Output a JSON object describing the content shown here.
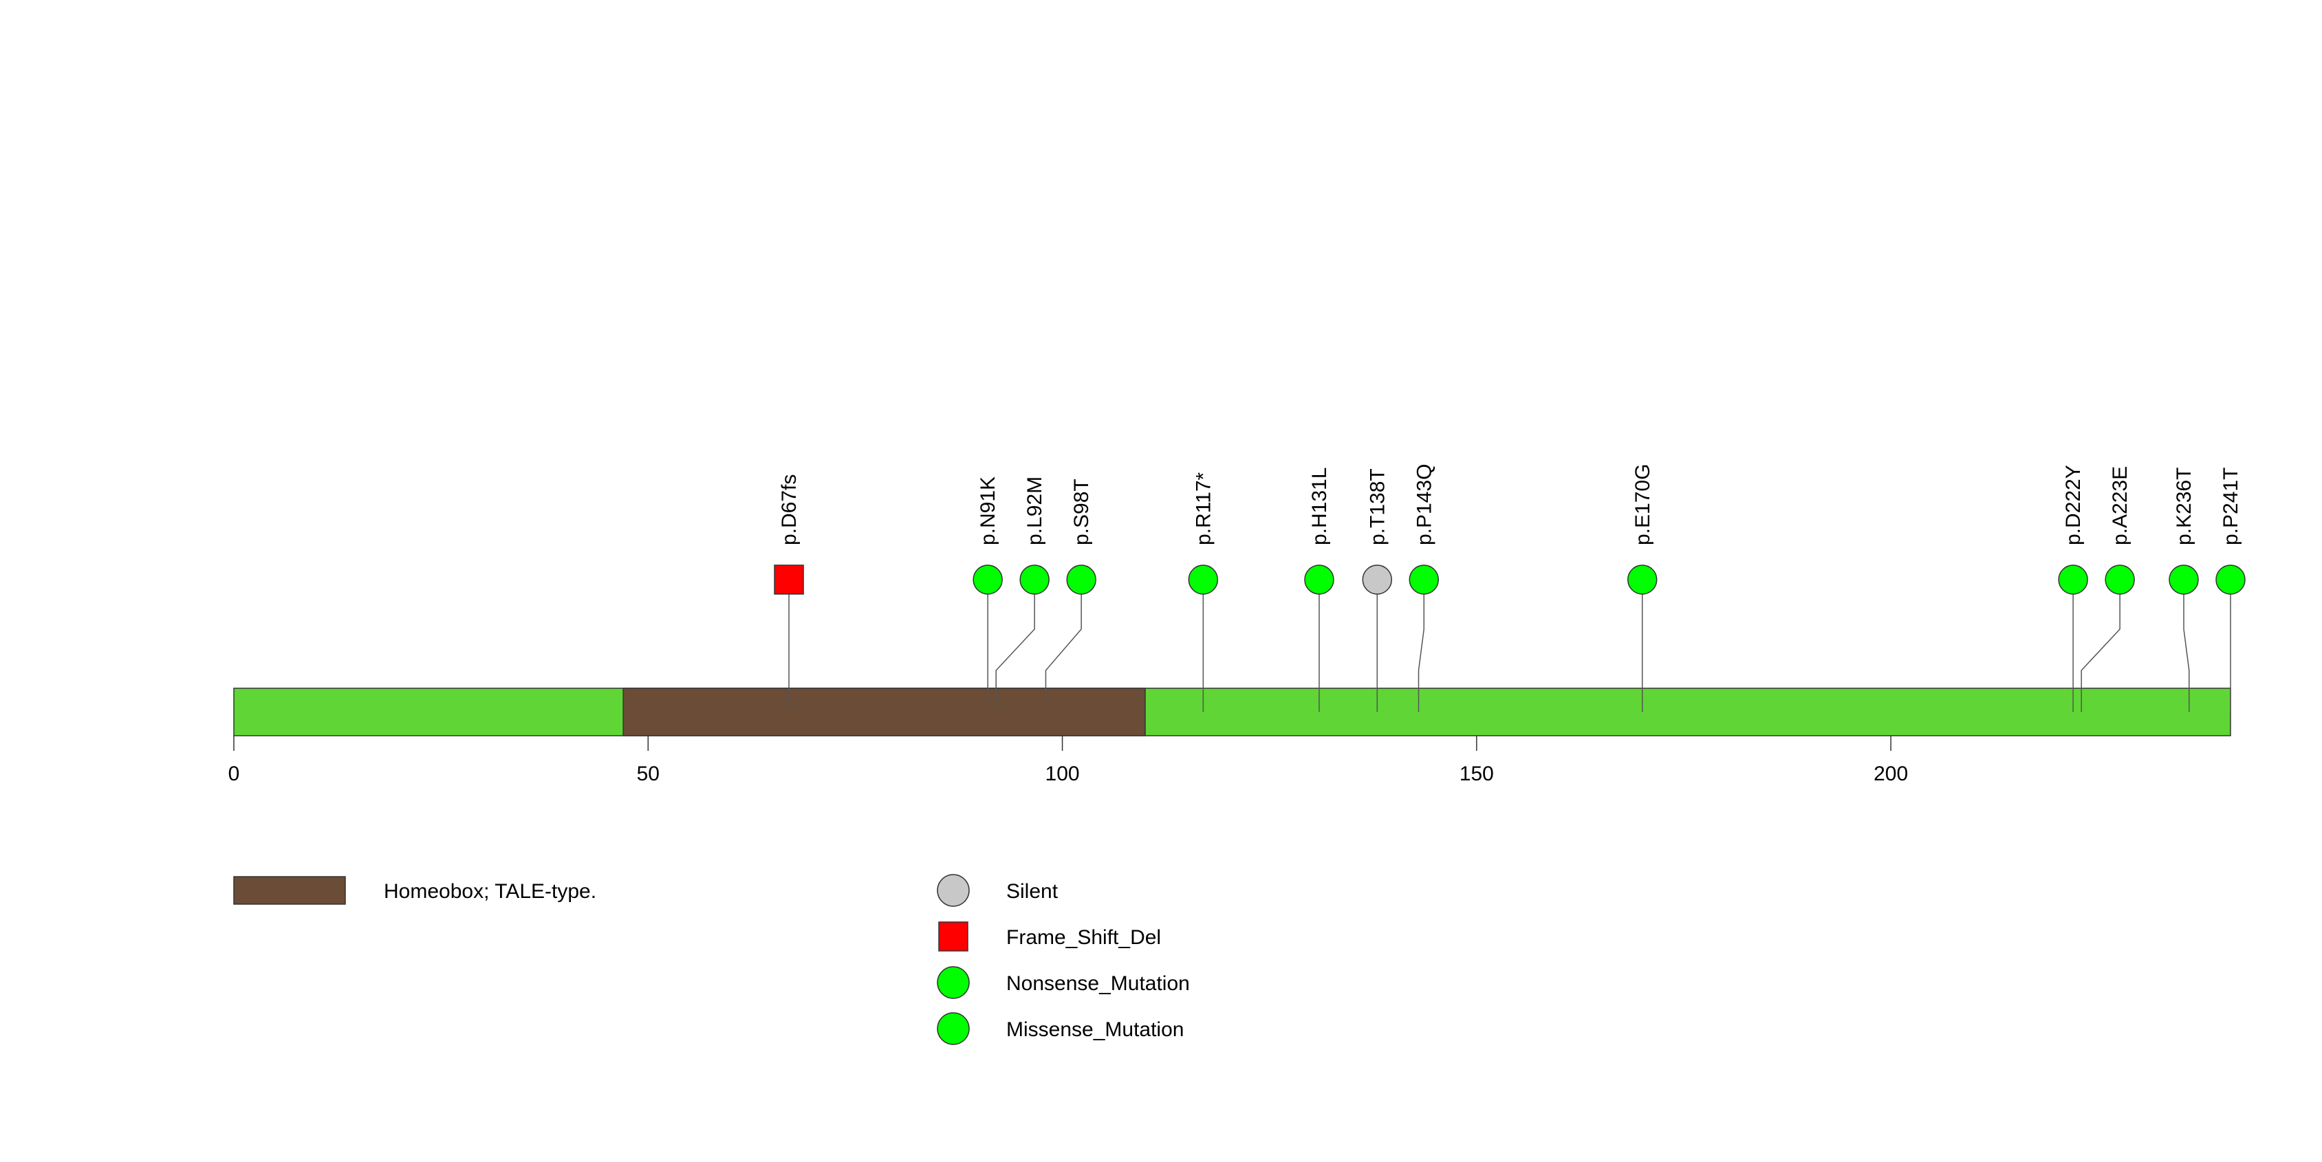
{
  "chart_data": {
    "type": "lollipop",
    "protein_length": 241,
    "x_axis": {
      "range": [
        0,
        241
      ],
      "ticks": [
        0,
        50,
        100,
        150,
        200
      ],
      "tick_labels": [
        "0",
        "50",
        "100",
        "150",
        "200"
      ]
    },
    "domains": [
      {
        "name": "Homeobox; TALE-type.",
        "start": 47,
        "end": 110,
        "color": "#6b4c36"
      }
    ],
    "backbone_color": "#5fd635",
    "mutations": [
      {
        "label": "p.D67fs",
        "position": 67,
        "type": "Frame_Shift_Del"
      },
      {
        "label": "p.N91K",
        "position": 91,
        "type": "Missense_Mutation"
      },
      {
        "label": "p.L92M",
        "position": 92,
        "type": "Missense_Mutation"
      },
      {
        "label": "p.S98T",
        "position": 98,
        "type": "Missense_Mutation"
      },
      {
        "label": "p.R117*",
        "position": 117,
        "type": "Nonsense_Mutation"
      },
      {
        "label": "p.H131L",
        "position": 131,
        "type": "Missense_Mutation"
      },
      {
        "label": "p.T138T",
        "position": 138,
        "type": "Silent"
      },
      {
        "label": "p.P143Q",
        "position": 143,
        "type": "Missense_Mutation"
      },
      {
        "label": "p.E170G",
        "position": 170,
        "type": "Missense_Mutation"
      },
      {
        "label": "p.D222Y",
        "position": 222,
        "type": "Missense_Mutation"
      },
      {
        "label": "p.A223E",
        "position": 223,
        "type": "Missense_Mutation"
      },
      {
        "label": "p.K236T",
        "position": 236,
        "type": "Missense_Mutation"
      },
      {
        "label": "p.P241T",
        "position": 241,
        "type": "Missense_Mutation"
      }
    ],
    "mutation_legend": [
      {
        "label": "Silent",
        "shape": "circle",
        "color": "#c8c8c8"
      },
      {
        "label": "Frame_Shift_Del",
        "shape": "square",
        "color": "#ff0000"
      },
      {
        "label": "Nonsense_Mutation",
        "shape": "circle",
        "color": "#00ff00"
      },
      {
        "label": "Missense_Mutation",
        "shape": "circle",
        "color": "#00ff00"
      }
    ],
    "domain_legend": [
      {
        "label": "Homeobox; TALE-type.",
        "color": "#6b4c36"
      }
    ]
  }
}
